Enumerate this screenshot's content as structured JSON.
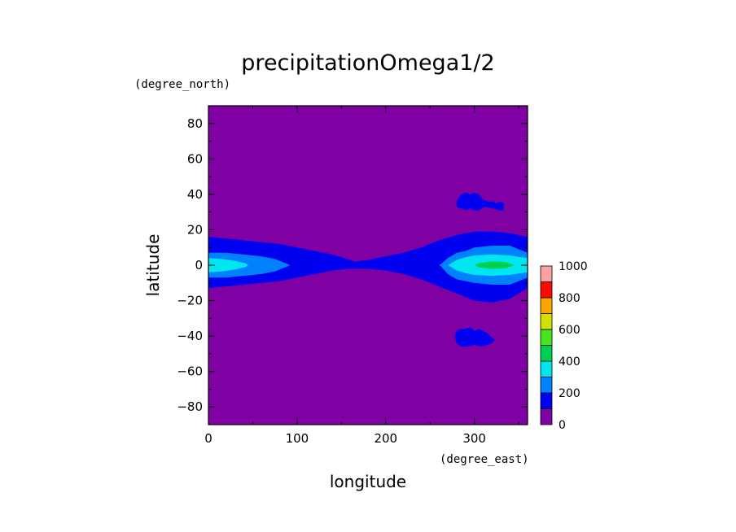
{
  "chart_data": {
    "type": "heatmap",
    "title": "precipitationOmega1/2",
    "xlabel": "longitude",
    "ylabel": "latitude",
    "x_unit": "(degree_east)",
    "y_unit": "(degree_north)",
    "xlim": [
      0,
      360
    ],
    "ylim": [
      -90,
      90
    ],
    "x_ticks": [
      0,
      100,
      200,
      300
    ],
    "y_ticks": [
      -80,
      -60,
      -40,
      -20,
      0,
      20,
      40,
      60,
      80
    ],
    "colorbar": {
      "levels": [
        0,
        100,
        200,
        300,
        400,
        500,
        600,
        700,
        800,
        900,
        1000
      ],
      "tick_labels": [
        0,
        200,
        400,
        600,
        800,
        1000
      ],
      "colors": [
        "#7f00a3",
        "#0000f0",
        "#0082ff",
        "#00e6f0",
        "#00d050",
        "#46e61e",
        "#d2e100",
        "#ffa500",
        "#ff0a00",
        "#ffa0a0"
      ]
    },
    "bands": [
      {
        "min": 100,
        "lon": [
          0,
          20,
          40,
          60,
          80,
          100,
          120,
          140,
          160,
          165,
          180,
          200,
          220,
          240,
          260,
          280,
          300,
          320,
          340,
          360
        ],
        "north": [
          16,
          15,
          14,
          13,
          12,
          10,
          8,
          6,
          3,
          2,
          3,
          5,
          7,
          10,
          14,
          17,
          19,
          19,
          18,
          16
        ],
        "south": [
          -13,
          -12,
          -11,
          -10,
          -9,
          -7,
          -5,
          -3,
          -2,
          -2,
          -2,
          -3,
          -5,
          -8,
          -12,
          -16,
          -20,
          -21,
          -19,
          -13
        ]
      },
      {
        "min": 200,
        "lon": [
          0,
          20,
          40,
          60,
          75,
          90,
          92,
          260,
          262,
          270,
          280,
          290,
          300,
          320,
          340,
          360
        ],
        "north": [
          7,
          7,
          6,
          5,
          3.5,
          0.5,
          0,
          0,
          0.5,
          4,
          7,
          8,
          10,
          11,
          11,
          7
        ],
        "south": [
          -7,
          -7,
          -6,
          -5,
          -3.5,
          -0.5,
          0,
          0,
          -0.5,
          -5,
          -8,
          -9,
          -10,
          -11,
          -11,
          -7
        ],
        "wrap": true
      },
      {
        "min": 300,
        "lon": [
          0,
          15,
          30,
          42,
          45,
          270,
          272,
          280,
          290,
          300,
          320,
          340,
          360
        ],
        "north": [
          4,
          3.6,
          2.5,
          1,
          0,
          0,
          0.5,
          3,
          4.5,
          5.5,
          6,
          5.5,
          4
        ],
        "south": [
          -4,
          -3.6,
          -2.5,
          -1,
          0,
          0,
          -0.5,
          -3,
          -4.5,
          -5.5,
          -6,
          -5.5,
          -4
        ],
        "wrap": true
      },
      {
        "min": 400,
        "lon": [
          300,
          305,
          320,
          335,
          345
        ],
        "north": [
          0,
          1.2,
          2.2,
          1.8,
          0
        ],
        "south": [
          0,
          -1.2,
          -2.2,
          -1.8,
          0
        ]
      }
    ],
    "patches": [
      {
        "min": 100,
        "lon": [
          280,
          285,
          290,
          295,
          300,
          305,
          310,
          315,
          320,
          325,
          330,
          333,
          333,
          328,
          320,
          312,
          305,
          300,
          295,
          290,
          285,
          280
        ],
        "lat": [
          36,
          40,
          41,
          40,
          41,
          40,
          37,
          36,
          36,
          35,
          36,
          35,
          31,
          31,
          32,
          33,
          31,
          31,
          32,
          31,
          32,
          33
        ]
      },
      {
        "min": 100,
        "lon": [
          279,
          283,
          290,
          296,
          300,
          305,
          310,
          316,
          320,
          323,
          320,
          315,
          308,
          300,
          292,
          285,
          280,
          278
        ],
        "lat": [
          -38,
          -36,
          -36,
          -35,
          -37,
          -36,
          -37,
          -39,
          -41,
          -42,
          -44,
          -45,
          -46,
          -45,
          -46,
          -46,
          -44,
          -41
        ]
      }
    ]
  }
}
